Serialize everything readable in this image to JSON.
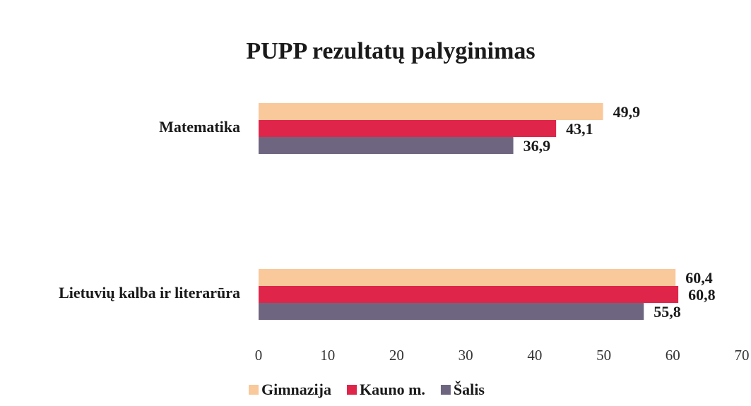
{
  "chart_data": {
    "type": "barh",
    "title": "PUPP rezultatų palyginimas",
    "categories": [
      "Matematika",
      "Lietuvių kalba ir literarūra"
    ],
    "series": [
      {
        "name": "Gimnazija",
        "color": "#f9c89b",
        "values": [
          49.9,
          60.4
        ],
        "value_labels": [
          "49,9",
          "60,4"
        ]
      },
      {
        "name": "Kauno m.",
        "color": "#e0254a",
        "values": [
          43.1,
          60.8
        ],
        "value_labels": [
          "43,1",
          "60,8"
        ]
      },
      {
        "name": "Šalis",
        "color": "#6e6680",
        "values": [
          36.9,
          55.8
        ],
        "value_labels": [
          "36,9",
          "55,8"
        ]
      }
    ],
    "xlim": [
      0,
      70
    ],
    "xticks": [
      0,
      10,
      20,
      30,
      40,
      50,
      60,
      70
    ],
    "grid": false,
    "legend": "bottom"
  }
}
